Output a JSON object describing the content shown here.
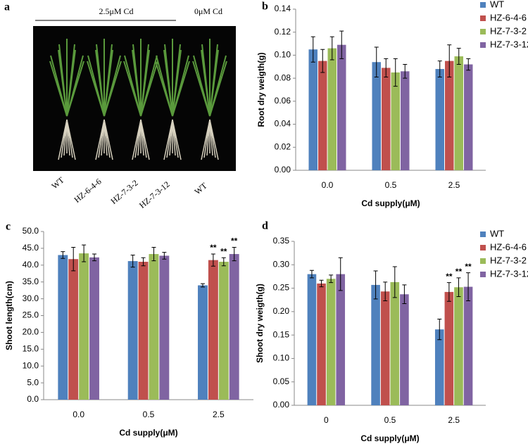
{
  "photo_panel": {
    "panel_label": "a",
    "group_label": "2.5μM Cd",
    "control_label": "0μM Cd",
    "plant_labels": [
      "WT",
      "HZ-6-4-6",
      "HZ-7-3-2",
      "HZ-7-3-12",
      "WT"
    ]
  },
  "chart_data": [
    {
      "type": "bar",
      "panel_label": "b",
      "x_label": "Cd supply(μM)",
      "y_label": "Root dry weigth(g)",
      "categories": [
        "0.0",
        "0.5",
        "2.5"
      ],
      "ylim": [
        0,
        0.14
      ],
      "yticks": [
        {
          "value": 0,
          "label": "0.00"
        },
        {
          "value": 0.02,
          "label": "0.02"
        },
        {
          "value": 0.04,
          "label": "0.04"
        },
        {
          "value": 0.06,
          "label": "0.06"
        },
        {
          "value": 0.08,
          "label": "0.08"
        },
        {
          "value": 0.1,
          "label": "0.10"
        },
        {
          "value": 0.12,
          "label": "0.12"
        },
        {
          "value": 0.14,
          "label": "0.14"
        }
      ],
      "legend": "top-right",
      "series": [
        {
          "name": "WT",
          "color": "#4f81bd",
          "values": [
            0.105,
            0.094,
            0.088
          ],
          "errors": [
            0.011,
            0.013,
            0.007
          ]
        },
        {
          "name": "HZ-6-4-6",
          "color": "#c0504d",
          "values": [
            0.095,
            0.089,
            0.095
          ],
          "errors": [
            0.01,
            0.008,
            0.014
          ]
        },
        {
          "name": "HZ-7-3-2",
          "color": "#9bbb59",
          "values": [
            0.106,
            0.085,
            0.099
          ],
          "errors": [
            0.01,
            0.012,
            0.007
          ]
        },
        {
          "name": "HZ-7-3-12",
          "color": "#8064a2",
          "values": [
            0.109,
            0.086,
            0.092
          ],
          "errors": [
            0.012,
            0.006,
            0.005
          ]
        }
      ]
    },
    {
      "type": "bar",
      "panel_label": "c",
      "x_label": "Cd supply(μM)",
      "y_label": "Shoot length(cm)",
      "categories": [
        "0.0",
        "0.5",
        "2.5"
      ],
      "ylim": [
        0,
        50
      ],
      "yticks": [
        {
          "value": 0,
          "label": "0.0"
        },
        {
          "value": 5,
          "label": "5.0"
        },
        {
          "value": 10,
          "label": "10.0"
        },
        {
          "value": 15,
          "label": "15.0"
        },
        {
          "value": 20,
          "label": "20.0"
        },
        {
          "value": 25,
          "label": "25.0"
        },
        {
          "value": 30,
          "label": "30.0"
        },
        {
          "value": 35,
          "label": "35.0"
        },
        {
          "value": 40,
          "label": "40.0"
        },
        {
          "value": 45,
          "label": "45.0"
        },
        {
          "value": 50,
          "label": "50.0"
        }
      ],
      "series": [
        {
          "color": "#4f81bd",
          "values": [
            43.0,
            41.2,
            34.0
          ],
          "errors": [
            1.0,
            1.8,
            0.5
          ]
        },
        {
          "color": "#c0504d",
          "values": [
            41.8,
            41.0,
            41.5
          ],
          "errors": [
            3.5,
            1.2,
            1.8
          ],
          "significance": [
            null,
            null,
            "**"
          ]
        },
        {
          "color": "#9bbb59",
          "values": [
            43.5,
            43.3,
            41.0
          ],
          "errors": [
            2.5,
            2.0,
            1.2
          ],
          "significance": [
            null,
            null,
            "**"
          ]
        },
        {
          "color": "#8064a2",
          "values": [
            42.3,
            42.8,
            43.3
          ],
          "errors": [
            1.0,
            1.0,
            2.0
          ],
          "significance": [
            null,
            null,
            "**"
          ]
        }
      ]
    },
    {
      "type": "bar",
      "panel_label": "d",
      "x_label": "Cd supply(μM)",
      "y_label": "Shoot dry weigth(g)",
      "categories": [
        "0",
        "0.5",
        "2.5"
      ],
      "ylim": [
        0,
        0.35
      ],
      "yticks": [
        {
          "value": 0,
          "label": "0.00"
        },
        {
          "value": 0.05,
          "label": "0.05"
        },
        {
          "value": 0.1,
          "label": "0.10"
        },
        {
          "value": 0.15,
          "label": "0.15"
        },
        {
          "value": 0.2,
          "label": "0.20"
        },
        {
          "value": 0.25,
          "label": "0.25"
        },
        {
          "value": 0.3,
          "label": "0.30"
        },
        {
          "value": 0.35,
          "label": "0.35"
        }
      ],
      "legend": "top-right",
      "series": [
        {
          "name": "WT",
          "color": "#4f81bd",
          "values": [
            0.28,
            0.257,
            0.162
          ],
          "errors": [
            0.008,
            0.03,
            0.022
          ]
        },
        {
          "name": "HZ-6-4-6",
          "color": "#c0504d",
          "values": [
            0.26,
            0.243,
            0.242
          ],
          "errors": [
            0.007,
            0.02,
            0.02
          ],
          "significance": [
            null,
            null,
            "**"
          ]
        },
        {
          "name": "HZ-7-3-2",
          "color": "#9bbb59",
          "values": [
            0.27,
            0.263,
            0.252
          ],
          "errors": [
            0.008,
            0.033,
            0.02
          ],
          "significance": [
            null,
            null,
            "**"
          ]
        },
        {
          "name": "HZ-7-3-12",
          "color": "#8064a2",
          "values": [
            0.28,
            0.237,
            0.253
          ],
          "errors": [
            0.035,
            0.02,
            0.03
          ],
          "significance": [
            null,
            null,
            "**"
          ]
        }
      ]
    }
  ]
}
